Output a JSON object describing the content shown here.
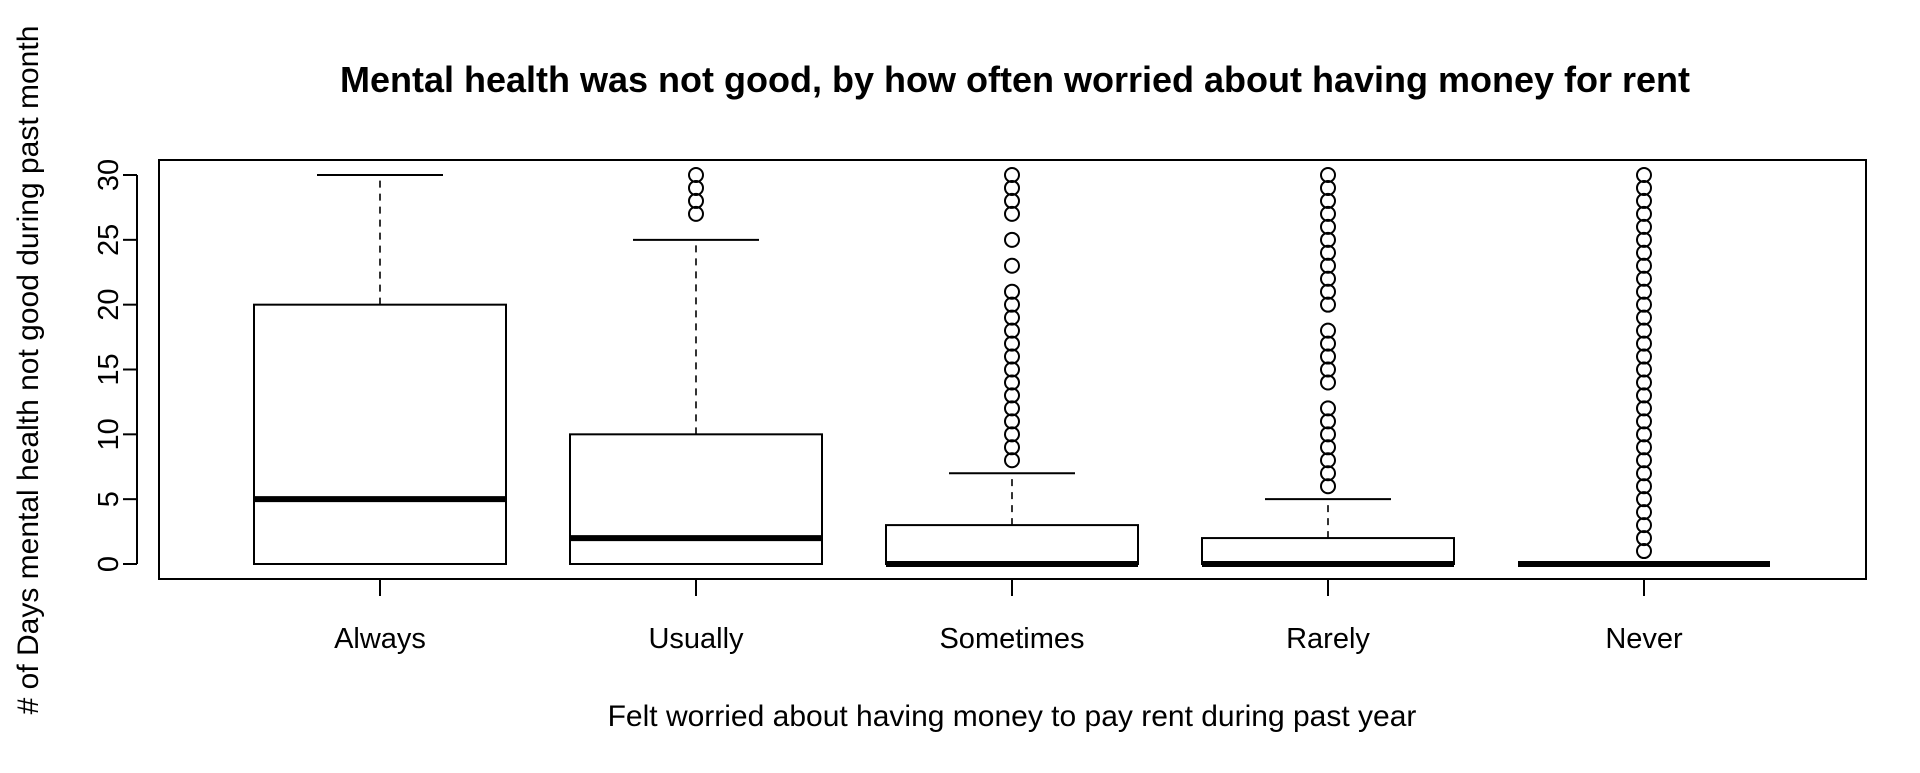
{
  "chart_data": {
    "type": "boxplot",
    "title": "Mental health was not good, by how often worried about having money for rent",
    "xlabel": "Felt worried about having money to pay rent during past year",
    "ylabel": "# of Days mental health not good during past month",
    "ylim": [
      0,
      30
    ],
    "yticks": [
      0,
      5,
      10,
      15,
      20,
      25,
      30
    ],
    "grid": false,
    "legend": "none",
    "categories": [
      "Always",
      "Usually",
      "Sometimes",
      "Rarely",
      "Never"
    ],
    "boxes": [
      {
        "category": "Always",
        "whisker_low": 0,
        "q1": 0,
        "median": 5,
        "q3": 20,
        "whisker_high": 30,
        "outliers": []
      },
      {
        "category": "Usually",
        "whisker_low": 0,
        "q1": 0,
        "median": 2,
        "q3": 10,
        "whisker_high": 25,
        "outliers": [
          27,
          28,
          29,
          30
        ]
      },
      {
        "category": "Sometimes",
        "whisker_low": 0,
        "q1": 0,
        "median": 0,
        "q3": 3,
        "whisker_high": 7,
        "outliers": [
          8,
          9,
          10,
          11,
          12,
          13,
          14,
          15,
          16,
          17,
          18,
          19,
          20,
          21,
          23,
          25,
          27,
          28,
          29,
          30
        ]
      },
      {
        "category": "Rarely",
        "whisker_low": 0,
        "q1": 0,
        "median": 0,
        "q3": 2,
        "whisker_high": 5,
        "outliers": [
          6,
          7,
          8,
          9,
          10,
          11,
          12,
          14,
          15,
          16,
          17,
          18,
          20,
          21,
          22,
          23,
          24,
          25,
          26,
          27,
          28,
          29,
          30
        ]
      },
      {
        "category": "Never",
        "whisker_low": 0,
        "q1": 0,
        "median": 0,
        "q3": 0,
        "whisker_high": 0,
        "outliers": [
          1,
          2,
          3,
          4,
          5,
          6,
          7,
          8,
          9,
          10,
          11,
          12,
          13,
          14,
          15,
          16,
          17,
          18,
          19,
          20,
          21,
          22,
          23,
          24,
          25,
          26,
          27,
          28,
          29,
          30
        ]
      }
    ]
  }
}
